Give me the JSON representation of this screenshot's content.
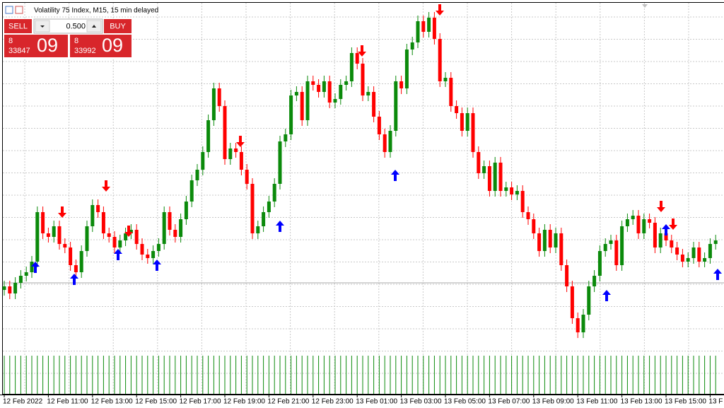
{
  "chart_data": {
    "type": "candlestick",
    "title": "Volatility 75 Index, M15, 15 min delayed",
    "up_color": "#0b8a0b",
    "down_color": "#ff0000",
    "ylim": [
      832850,
      837850
    ],
    "grid": true,
    "categories": [
      "12 Feb 2022",
      null,
      null,
      null,
      null,
      null,
      null,
      null,
      "12 Feb 11:00",
      null,
      null,
      null,
      null,
      null,
      null,
      null,
      "12 Feb 13:00",
      null,
      null,
      null,
      null,
      null,
      null,
      null,
      "12 Feb 15:00",
      null,
      null,
      null,
      null,
      null,
      null,
      null,
      "12 Feb 17:00",
      null,
      null,
      null,
      null,
      null,
      null,
      null,
      "12 Feb 19:00",
      null,
      null,
      null,
      null,
      null,
      null,
      null,
      "12 Feb 21:00",
      null,
      null,
      null,
      null,
      null,
      null,
      null,
      "12 Feb 23:00",
      null,
      null,
      null,
      null,
      null,
      null,
      null,
      "13 Feb 01:00",
      null,
      null,
      null,
      null,
      null,
      null,
      null,
      "13 Feb 03:00",
      null,
      null,
      null,
      null,
      null,
      null,
      null,
      "13 Feb 05:00",
      null,
      null,
      null,
      null,
      null,
      null,
      null,
      "13 Feb 07:00",
      null,
      null,
      null,
      null,
      null,
      null,
      null,
      "13 Feb 09:00",
      null,
      null,
      null,
      null,
      null,
      null,
      null,
      "13 Feb 11:00",
      null,
      null,
      null,
      null,
      null,
      null,
      null,
      "13 Feb 13:00",
      null,
      null,
      null,
      null,
      null,
      null,
      null,
      "13 Feb 15:00",
      null,
      null,
      null,
      null,
      null,
      null,
      null,
      "13 F",
      null
    ],
    "open": [
      833750,
      833800,
      833700,
      833850,
      833950,
      834000,
      834150,
      834850,
      834550,
      834500,
      834650,
      834400,
      834350,
      834100,
      834000,
      834300,
      834650,
      834950,
      834850,
      834550,
      834500,
      834350,
      834450,
      834550,
      834600,
      834400,
      834250,
      834200,
      834300,
      834400,
      834850,
      834600,
      834500,
      834750,
      835000,
      835300,
      835450,
      835700,
      836150,
      836600,
      836350,
      835600,
      835750,
      835700,
      835450,
      835250,
      834550,
      834650,
      834850,
      835000,
      835250,
      835850,
      835950,
      836500,
      836550,
      836150,
      836700,
      836650,
      836550,
      836700,
      836400,
      836450,
      836650,
      836700,
      837100,
      836950,
      836500,
      836550,
      836200,
      835950,
      835700,
      836000,
      836700,
      836600,
      837150,
      837250,
      837550,
      837400,
      837600,
      837300,
      836700,
      836750,
      836350,
      836250,
      836000,
      836250,
      835700,
      835400,
      835500,
      835150,
      835550,
      835150,
      835200,
      835100,
      835150,
      834850,
      834750,
      834550,
      834300,
      834600,
      834350,
      834550,
      834100,
      833800,
      833350,
      833150,
      833400,
      833800,
      833950,
      834300,
      834400,
      834450,
      834100,
      834650,
      834750,
      834800,
      834550,
      834750,
      834700,
      834350,
      834550,
      834450,
      834350,
      834250,
      834150,
      834200,
      834350,
      834150,
      834200,
      834400
    ],
    "high": [
      833880,
      833880,
      833930,
      834030,
      834080,
      834230,
      834930,
      834930,
      834630,
      834730,
      834730,
      834480,
      834430,
      834180,
      834380,
      834730,
      835030,
      835030,
      834930,
      834630,
      834580,
      834530,
      834630,
      834680,
      834680,
      834480,
      834330,
      834380,
      834480,
      834930,
      834930,
      834680,
      834830,
      835080,
      835380,
      835530,
      835780,
      836230,
      836680,
      836680,
      836430,
      835830,
      835830,
      835780,
      835530,
      835330,
      834730,
      834930,
      835080,
      835330,
      835930,
      836030,
      836580,
      836630,
      836630,
      836780,
      836780,
      836730,
      836780,
      836780,
      836530,
      836730,
      836780,
      837180,
      837180,
      837030,
      836630,
      836630,
      836280,
      836030,
      836080,
      836780,
      836780,
      837230,
      837330,
      837630,
      837630,
      837680,
      837680,
      837380,
      836830,
      836830,
      836430,
      836330,
      836330,
      836330,
      835780,
      835580,
      835580,
      835630,
      835630,
      835280,
      835280,
      835230,
      835230,
      834930,
      834830,
      834630,
      834680,
      834680,
      834630,
      834630,
      834180,
      833880,
      833430,
      833480,
      833880,
      834030,
      834380,
      834480,
      834530,
      834530,
      834730,
      834830,
      834880,
      834880,
      834830,
      834830,
      834780,
      834630,
      834630,
      834530,
      834430,
      834330,
      834280,
      834430,
      834430,
      834280,
      834480,
      834530
    ],
    "low": [
      833670,
      833620,
      833620,
      833770,
      833870,
      833920,
      834070,
      834470,
      834420,
      834420,
      834320,
      834270,
      834020,
      833920,
      833920,
      834220,
      834570,
      834770,
      834470,
      834420,
      834270,
      834270,
      834370,
      834470,
      834320,
      834170,
      834120,
      834120,
      834220,
      834320,
      834520,
      834420,
      834420,
      834670,
      834920,
      835220,
      835370,
      835620,
      836070,
      836270,
      835520,
      835520,
      835620,
      835370,
      835170,
      834470,
      834470,
      834570,
      834770,
      834920,
      835170,
      835770,
      835870,
      836420,
      836070,
      836070,
      836570,
      836470,
      836470,
      836320,
      836320,
      836370,
      836570,
      836620,
      836870,
      836420,
      836420,
      836120,
      835870,
      835620,
      835620,
      835920,
      836520,
      836520,
      837070,
      837170,
      837320,
      837320,
      837220,
      836620,
      836620,
      836270,
      836170,
      835920,
      835920,
      835620,
      835320,
      835320,
      835070,
      835070,
      835070,
      835070,
      835020,
      835020,
      834770,
      834670,
      834470,
      834220,
      834220,
      834270,
      834270,
      834020,
      833720,
      833270,
      833070,
      833070,
      833320,
      833720,
      833870,
      834220,
      834320,
      834020,
      834020,
      834570,
      834670,
      834470,
      834470,
      834620,
      834270,
      834270,
      834370,
      834270,
      834170,
      834070,
      834070,
      834120,
      834070,
      834070,
      834120,
      834320
    ],
    "close": [
      833800,
      833700,
      833850,
      833950,
      834000,
      834150,
      834850,
      834550,
      834500,
      834650,
      834400,
      834350,
      834100,
      834000,
      834300,
      834650,
      834950,
      834850,
      834550,
      834500,
      834350,
      834450,
      834550,
      834600,
      834400,
      834250,
      834200,
      834300,
      834400,
      834850,
      834600,
      834500,
      834750,
      835000,
      835300,
      835450,
      835700,
      836150,
      836600,
      836350,
      835600,
      835750,
      835700,
      835450,
      835250,
      834550,
      834650,
      834850,
      835000,
      835250,
      835850,
      835950,
      836500,
      836550,
      836150,
      836700,
      836650,
      836550,
      836700,
      836400,
      836450,
      836650,
      836700,
      837100,
      836950,
      836500,
      836550,
      836200,
      835950,
      835700,
      836000,
      836700,
      836600,
      837150,
      837250,
      837550,
      837400,
      837600,
      837300,
      836700,
      836750,
      836350,
      836250,
      836000,
      836250,
      835700,
      835400,
      835500,
      835150,
      835550,
      835150,
      835200,
      835100,
      835150,
      834850,
      834750,
      834550,
      834300,
      834600,
      834350,
      834550,
      834100,
      833800,
      833350,
      833150,
      833400,
      833800,
      833950,
      834300,
      834400,
      834450,
      834100,
      834650,
      834750,
      834800,
      834550,
      834750,
      834700,
      834350,
      834550,
      834450,
      834350,
      834250,
      834150,
      834200,
      834350,
      834150,
      834200,
      834400,
      834450
    ]
  },
  "trade_panel": {
    "sell": "SELL",
    "volume": "0.500",
    "buy": "BUY",
    "bid": {
      "big": "8",
      "mid": "33847",
      "pips": "09"
    },
    "ask": {
      "big": "8",
      "mid": "33992",
      "pips": "09"
    }
  }
}
